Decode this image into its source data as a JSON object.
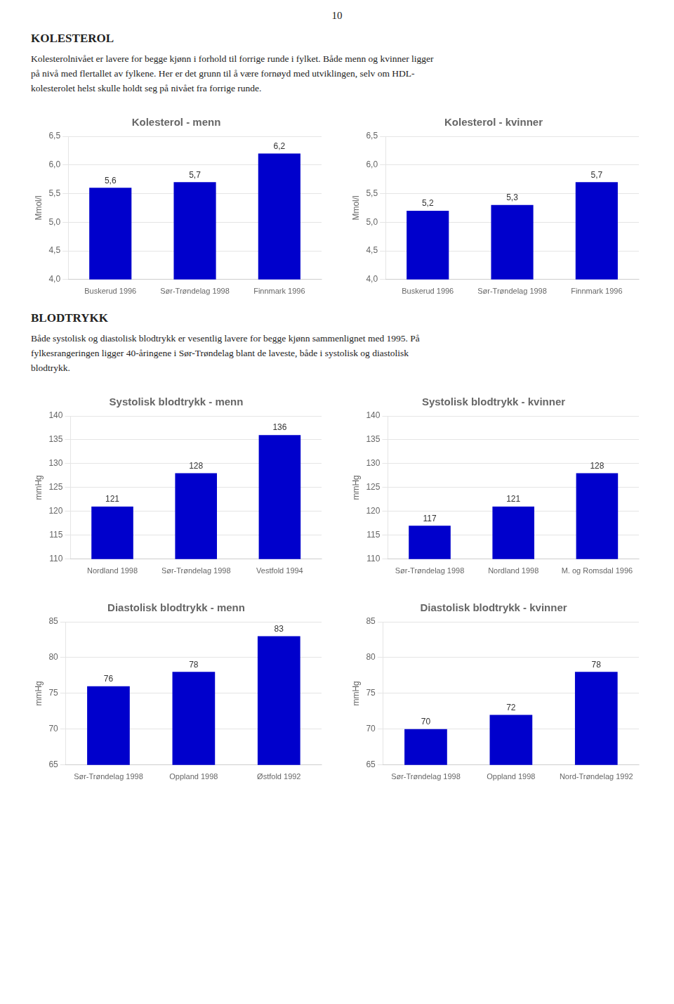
{
  "page_number": "10",
  "sections": [
    {
      "title": "KOLESTEROL",
      "text_lines": [
        "Kolesterolnivået er lavere for begge kjønn i forhold til forrige runde i fylket. Både menn og kvinner ligger",
        "på nivå med flertallet av fylkene. Her er det grunn til å være fornøyd med utviklingen, selv om HDL-",
        "kolesterolet helst skulle holdt seg på nivået fra forrige runde."
      ]
    },
    {
      "title": "BLODTRYKK",
      "text_lines": [
        "Både systolisk og diastolisk blodtrykk er vesentlig lavere for begge kjønn sammenlignet med 1995. På",
        "fylkesrangeringen ligger 40-åringene i Sør-Trøndelag blant de laveste, både i systolisk og diastolisk",
        "blodtrykk."
      ]
    }
  ],
  "chart_data": [
    {
      "type": "bar",
      "title": "Kolesterol - menn",
      "ylabel": "Mmol/l",
      "categories": [
        "Buskerud 1996",
        "Sør-Trøndelag 1998",
        "Finnmark 1996"
      ],
      "values": [
        5.6,
        5.7,
        6.2
      ],
      "value_labels": [
        "5,6",
        "5,7",
        "6,2"
      ],
      "color": "#0000CC",
      "ylim": [
        4.0,
        6.5
      ],
      "yticks": [
        {
          "value": 4.0,
          "label": "4,0"
        },
        {
          "value": 4.5,
          "label": "4,5"
        },
        {
          "value": 5.0,
          "label": "5,0"
        },
        {
          "value": 5.5,
          "label": "5,5"
        },
        {
          "value": 6.0,
          "label": "6,0"
        },
        {
          "value": 6.5,
          "label": "6,5"
        }
      ],
      "grid": true,
      "data_labels": true
    },
    {
      "type": "bar",
      "title": "Kolesterol - kvinner",
      "ylabel": "Mmol/l",
      "categories": [
        "Buskerud 1996",
        "Sør-Trøndelag 1998",
        "Finnmark 1996"
      ],
      "values": [
        5.2,
        5.3,
        5.7
      ],
      "value_labels": [
        "5,2",
        "5,3",
        "5,7"
      ],
      "color": "#0000CC",
      "ylim": [
        4.0,
        6.5
      ],
      "yticks": [
        {
          "value": 4.0,
          "label": "4,0"
        },
        {
          "value": 4.5,
          "label": "4,5"
        },
        {
          "value": 5.0,
          "label": "5,0"
        },
        {
          "value": 5.5,
          "label": "5,5"
        },
        {
          "value": 6.0,
          "label": "6,0"
        },
        {
          "value": 6.5,
          "label": "6,5"
        }
      ],
      "grid": true,
      "data_labels": true
    },
    {
      "type": "bar",
      "title": "Systolisk blodtrykk - menn",
      "ylabel": "mmHg",
      "categories": [
        "Nordland 1998",
        "Sør-Trøndelag 1998",
        "Vestfold 1994"
      ],
      "values": [
        121,
        128,
        136
      ],
      "color": "#0000CC",
      "ylim": [
        110,
        140
      ],
      "yticks": [
        110,
        115,
        120,
        125,
        130,
        135,
        140
      ],
      "grid": true,
      "data_labels": true
    },
    {
      "type": "bar",
      "title": "Systolisk blodtrykk - kvinner",
      "ylabel": "mmHg",
      "categories": [
        "Sør-Trøndelag 1998",
        "Nordland 1998",
        "M. og Romsdal 1996"
      ],
      "values": [
        117,
        121,
        128
      ],
      "color": "#0000CC",
      "ylim": [
        110,
        140
      ],
      "yticks": [
        110,
        115,
        120,
        125,
        130,
        135,
        140
      ],
      "grid": true,
      "data_labels": true
    },
    {
      "type": "bar",
      "title": "Diastolisk blodtrykk - menn",
      "ylabel": "mmHg",
      "categories": [
        "Sør-Trøndelag 1998",
        "Oppland 1998",
        "Østfold 1992"
      ],
      "values": [
        76,
        78,
        83
      ],
      "color": "#0000CC",
      "ylim": [
        65,
        85
      ],
      "yticks": [
        65,
        70,
        75,
        80,
        85
      ],
      "grid": true,
      "data_labels": true
    },
    {
      "type": "bar",
      "title": "Diastolisk blodtrykk - kvinner",
      "ylabel": "mmHg",
      "categories": [
        "Sør-Trøndelag 1998",
        "Oppland 1998",
        "Nord-Trøndelag 1992"
      ],
      "values": [
        70,
        72,
        78
      ],
      "color": "#0000CC",
      "ylim": [
        65,
        85
      ],
      "yticks": [
        65,
        70,
        75,
        80,
        85
      ],
      "grid": true,
      "data_labels": true
    }
  ]
}
